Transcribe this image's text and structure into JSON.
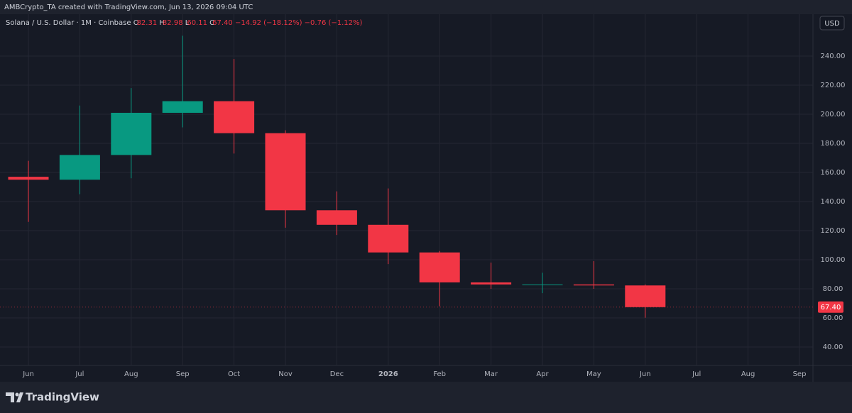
{
  "attribution": "AMBCrypto_TA created with TradingView.com, Jun 13, 2026 09:04 UTC",
  "brand": "TradingView",
  "currency_button": "USD",
  "header": {
    "symbol": "Solana / U.S. Dollar · 1M · Coinbase",
    "open_letter": "O",
    "open": "82.31",
    "high_letter": "H",
    "high": "82.98",
    "low_letter": "L",
    "low": "60.11",
    "close_letter": "C",
    "close": "67.40",
    "change": "−14.92 (−18.12%)",
    "change_last": "−0.76 (−1.12%)"
  },
  "chart_data": {
    "type": "candlestick",
    "categories": [
      "Jun",
      "Jul",
      "Aug",
      "Sep",
      "Oct",
      "Nov",
      "Dec",
      "2026",
      "Feb",
      "Mar",
      "Apr",
      "May",
      "Jun",
      "Jul",
      "Aug",
      "Sep"
    ],
    "open": [
      157,
      155,
      172,
      201,
      209,
      187,
      134,
      124,
      105,
      84.4,
      83,
      83,
      82.31,
      null,
      null,
      null
    ],
    "high": [
      168,
      206,
      218,
      254,
      238,
      189,
      147,
      149,
      106,
      98,
      91,
      99,
      82.98,
      null,
      null,
      null
    ],
    "low": [
      126,
      145,
      156,
      191,
      173,
      122,
      117,
      97,
      68,
      80,
      77,
      80,
      60.11,
      null,
      null,
      null
    ],
    "close": [
      155,
      172,
      201,
      209,
      187,
      134,
      124,
      105,
      84.4,
      83,
      83,
      82.32,
      67.4,
      null,
      null,
      null
    ],
    "up_color": "#089981",
    "down_color": "#f23645",
    "ylim": [
      27.3,
      268.8
    ],
    "yticks": [
      {
        "value": 40,
        "label": "40.00"
      },
      {
        "value": 60,
        "label": "60.00"
      },
      {
        "value": 80,
        "label": "80.00"
      },
      {
        "value": 100,
        "label": "100.00"
      },
      {
        "value": 120,
        "label": "120.00"
      },
      {
        "value": 140,
        "label": "140.00"
      },
      {
        "value": 160,
        "label": "160.00"
      },
      {
        "value": 180,
        "label": "180.00"
      },
      {
        "value": 200,
        "label": "200.00"
      },
      {
        "value": 220,
        "label": "220.00"
      },
      {
        "value": 240,
        "label": "240.00"
      }
    ],
    "last_price": {
      "value": 67.4,
      "label": "67.40"
    },
    "grid": true
  }
}
